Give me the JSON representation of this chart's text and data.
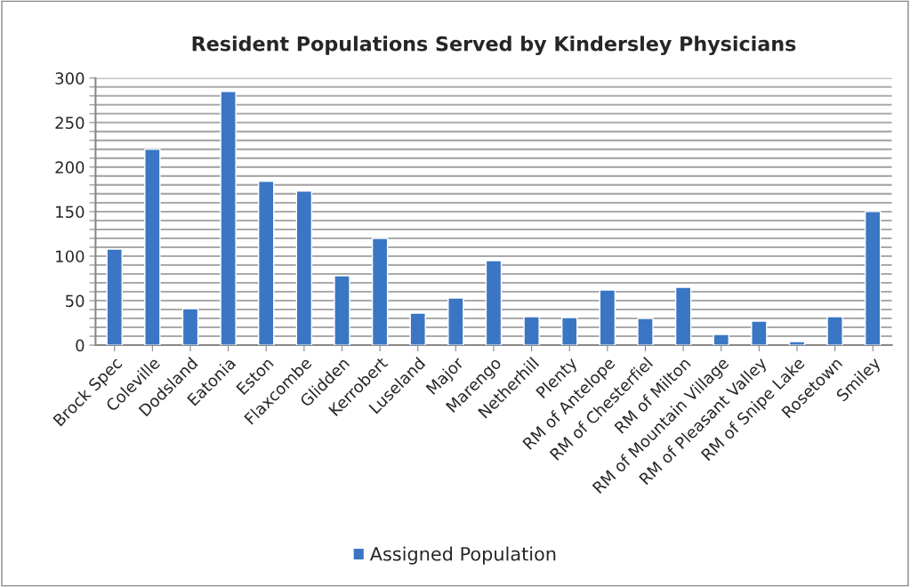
{
  "chart_data": {
    "type": "bar",
    "title": "Resident Populations Served by Kindersley Physicians",
    "categories": [
      "Brock Spec",
      "Coleville",
      "Dodsland",
      "Eatonia",
      "Eston",
      "Flaxcombe",
      "Glidden",
      "Kerrobert",
      "Luseland",
      "Major",
      "Marengo",
      "Netherhill",
      "Plenty",
      "RM of Antelope",
      "RM of Chesterfiel",
      "RM of Milton",
      "RM of Mountain Village",
      "RM of Pleasant Valley",
      "RM of Snipe Lake",
      "Rosetown",
      "Smiley"
    ],
    "series": [
      {
        "name": "Assigned Population",
        "color": "#3a76c4",
        "values": [
          108,
          220,
          41,
          285,
          184,
          173,
          78,
          120,
          36,
          53,
          95,
          32,
          31,
          62,
          30,
          65,
          12,
          27,
          4,
          32,
          150
        ]
      }
    ],
    "ylim": [
      0,
      300
    ],
    "yticks": [
      0,
      {
        "value": 10,
        "label": null
      },
      {
        "value": 20,
        "label": null
      },
      {
        "value": 30,
        "label": null
      },
      {
        "value": 40,
        "label": null
      },
      50,
      {
        "value": 60,
        "label": null
      },
      {
        "value": 70,
        "label": null
      },
      {
        "value": 80,
        "label": null
      },
      {
        "value": 90,
        "label": null
      },
      100,
      {
        "value": 110,
        "label": null
      },
      {
        "value": 120,
        "label": null
      },
      {
        "value": 130,
        "label": null
      },
      {
        "value": 140,
        "label": null
      },
      150,
      {
        "value": 160,
        "label": null
      },
      {
        "value": 170,
        "label": null
      },
      {
        "value": 180,
        "label": null
      },
      {
        "value": 190,
        "label": null
      },
      200,
      {
        "value": 210,
        "label": null
      },
      {
        "value": 220,
        "label": null
      },
      {
        "value": 230,
        "label": null
      },
      {
        "value": 240,
        "label": null
      },
      250,
      {
        "value": 260,
        "label": null
      },
      {
        "value": 270,
        "label": null
      },
      {
        "value": 280,
        "label": null
      },
      {
        "value": 290,
        "label": null
      },
      300
    ],
    "grid": "y",
    "legend": "bottom"
  }
}
